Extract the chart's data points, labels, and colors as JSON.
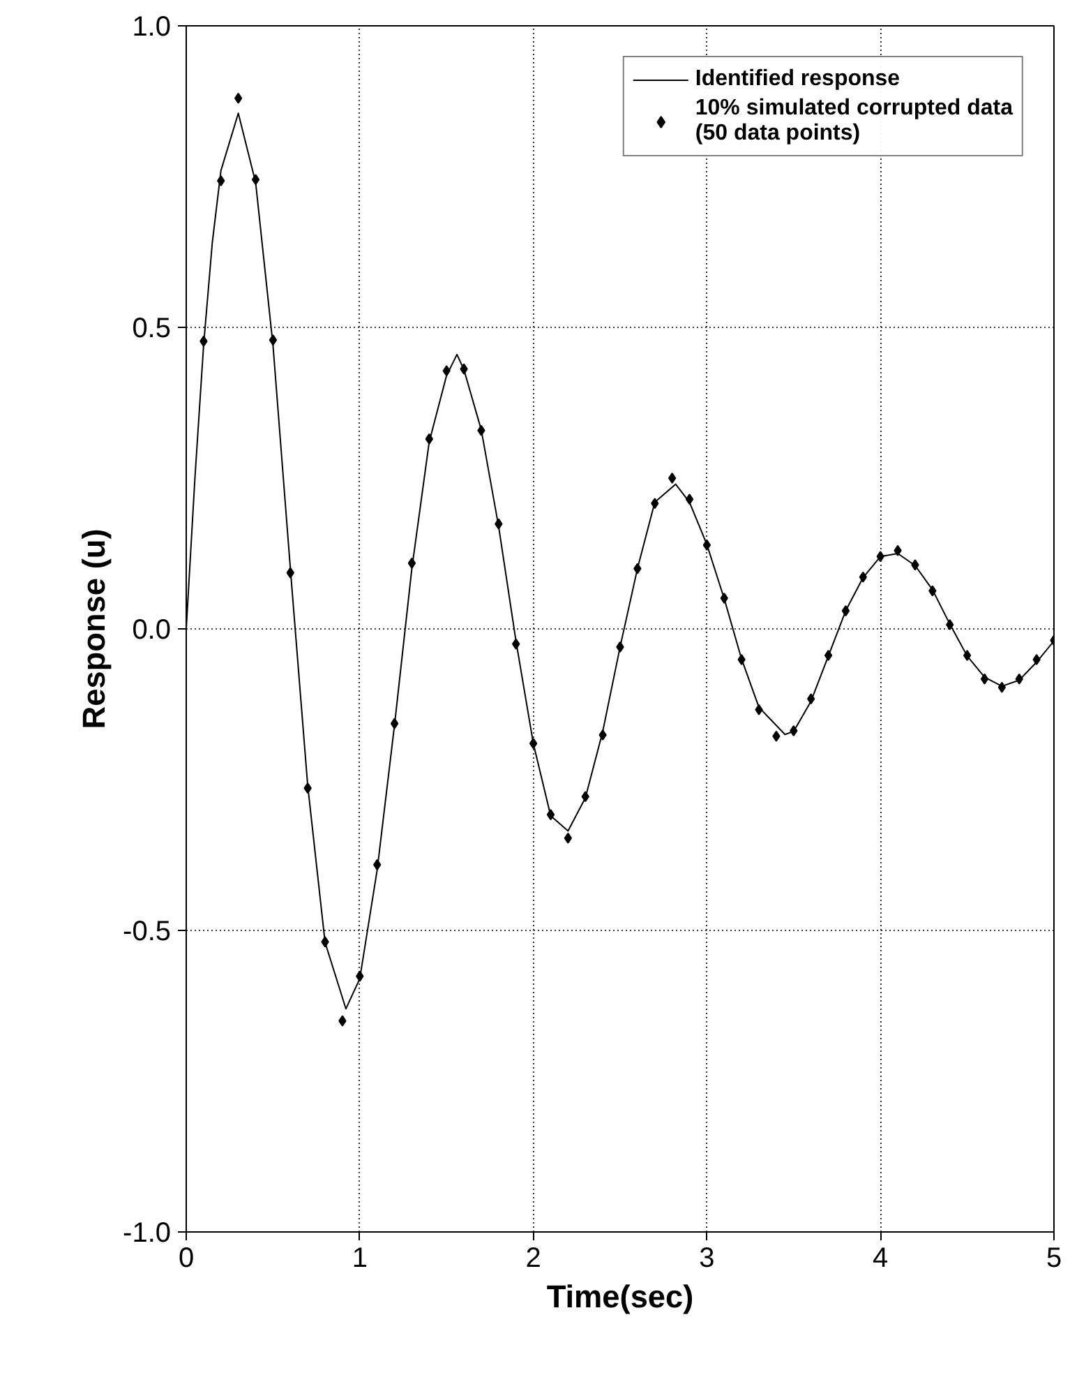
{
  "chart_data": {
    "type": "line",
    "xlabel": "Time(sec)",
    "ylabel": "Response (u)",
    "xlim": [
      0,
      5
    ],
    "ylim": [
      -1.0,
      1.0
    ],
    "xticks": [
      0,
      1,
      2,
      3,
      4,
      5
    ],
    "yticks": [
      {
        "value": -1.0,
        "label": "-1.0"
      },
      {
        "value": -0.5,
        "label": "-0.5"
      },
      {
        "value": 0,
        "label": "0.0"
      },
      {
        "value": 0.5,
        "label": "0.5"
      },
      {
        "value": 1.0,
        "label": "1.0"
      }
    ],
    "grid": true,
    "legend": "top right",
    "series": [
      {
        "name": "Identified response",
        "color": "#000000",
        "line_style": "solid",
        "x": [
          0,
          0.05,
          0.1,
          0.15,
          0.2,
          0.3,
          0.4,
          0.5,
          0.6,
          0.7,
          0.8,
          0.92,
          1.0,
          1.1,
          1.2,
          1.3,
          1.4,
          1.5,
          1.56,
          1.6,
          1.7,
          1.8,
          1.9,
          2.0,
          2.1,
          2.2,
          2.3,
          2.4,
          2.5,
          2.6,
          2.7,
          2.82,
          2.9,
          3.0,
          3.1,
          3.2,
          3.3,
          3.45,
          3.5,
          3.6,
          3.7,
          3.8,
          3.9,
          4.0,
          4.1,
          4.2,
          4.3,
          4.4,
          4.5,
          4.6,
          4.7,
          4.8,
          4.9,
          5.0
        ],
        "values": [
          0,
          0.25,
          0.47,
          0.64,
          0.76,
          0.855,
          0.74,
          0.47,
          0.1,
          -0.26,
          -0.52,
          -0.63,
          -0.58,
          -0.4,
          -0.16,
          0.1,
          0.31,
          0.42,
          0.455,
          0.43,
          0.33,
          0.17,
          -0.02,
          -0.19,
          -0.31,
          -0.335,
          -0.28,
          -0.17,
          -0.03,
          0.1,
          0.21,
          0.24,
          0.21,
          0.14,
          0.05,
          -0.05,
          -0.13,
          -0.175,
          -0.17,
          -0.12,
          -0.045,
          0.03,
          0.085,
          0.12,
          0.125,
          0.105,
          0.065,
          0.008,
          -0.045,
          -0.08,
          -0.095,
          -0.085,
          -0.055,
          -0.02
        ]
      },
      {
        "name": "10% simulated corrupted data\n(50 data points)",
        "type": "scatter",
        "color": "#000000",
        "marker": "diamond",
        "x": [
          0.1,
          0.2,
          0.3,
          0.4,
          0.5,
          0.6,
          0.7,
          0.8,
          0.9,
          1.0,
          1.1,
          1.2,
          1.3,
          1.4,
          1.5,
          1.6,
          1.7,
          1.8,
          1.9,
          2.0,
          2.1,
          2.2,
          2.3,
          2.4,
          2.5,
          2.6,
          2.7,
          2.8,
          2.9,
          3.0,
          3.1,
          3.2,
          3.3,
          3.4,
          3.5,
          3.6,
          3.7,
          3.8,
          3.9,
          4.0,
          4.1,
          4.2,
          4.3,
          4.4,
          4.5,
          4.6,
          4.7,
          4.8,
          4.9,
          5.0
        ],
        "values": [
          0.477,
          0.743,
          0.88,
          0.745,
          0.479,
          0.093,
          -0.264,
          -0.519,
          -0.65,
          -0.576,
          -0.391,
          -0.157,
          0.109,
          0.315,
          0.428,
          0.431,
          0.329,
          0.174,
          -0.025,
          -0.19,
          -0.308,
          -0.347,
          -0.278,
          -0.176,
          -0.03,
          0.1,
          0.208,
          0.25,
          0.215,
          0.139,
          0.051,
          -0.051,
          -0.134,
          -0.178,
          -0.169,
          -0.116,
          -0.044,
          0.03,
          0.086,
          0.12,
          0.13,
          0.106,
          0.063,
          0.007,
          -0.044,
          -0.083,
          -0.097,
          -0.083,
          -0.051,
          -0.019
        ]
      }
    ]
  }
}
